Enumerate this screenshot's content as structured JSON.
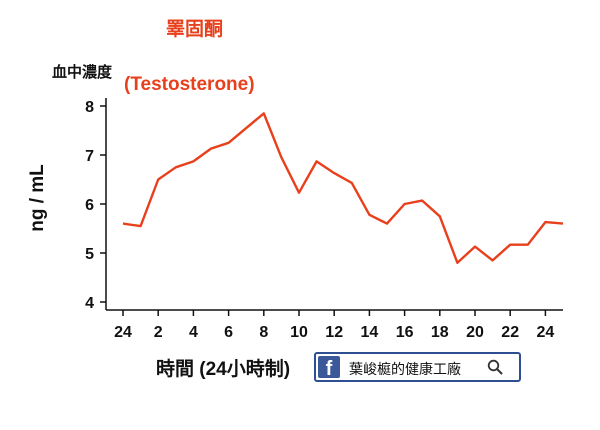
{
  "chart_data": {
    "type": "line",
    "title": "睪固酮",
    "subtitle": "(Testosterone)",
    "ylabel": "ng / mL",
    "y_unit_label": "血中濃度",
    "xlabel": "時間 (24小時制)",
    "ylim": [
      4,
      8
    ],
    "y_ticks": [
      "4",
      "5",
      "6",
      "7",
      "8"
    ],
    "x_ticks": [
      "24",
      "2",
      "4",
      "6",
      "8",
      "10",
      "12",
      "14",
      "16",
      "18",
      "20",
      "22",
      "24"
    ],
    "grid": false,
    "line_color": "#e8401c",
    "series": [
      {
        "values": [
          5.6,
          5.55,
          6.5,
          6.75,
          6.87,
          7.13,
          7.25,
          7.55,
          7.85,
          6.95,
          6.23,
          6.87,
          6.63,
          6.43,
          5.78,
          5.6,
          6.0,
          6.07,
          5.75,
          4.8,
          5.13,
          4.85,
          5.17,
          5.17,
          5.63,
          5.6
        ],
        "x": [
          0,
          1,
          2,
          3,
          4,
          5,
          6,
          7,
          8,
          9,
          10,
          11,
          12,
          13,
          14,
          15,
          16,
          17,
          18,
          19,
          20,
          21,
          22,
          23,
          24,
          25
        ]
      }
    ]
  },
  "watermark": {
    "logo": "f",
    "text": "葉峻榳的健康工廠",
    "icon": "search-icon",
    "border_color": "#2e4f91"
  }
}
